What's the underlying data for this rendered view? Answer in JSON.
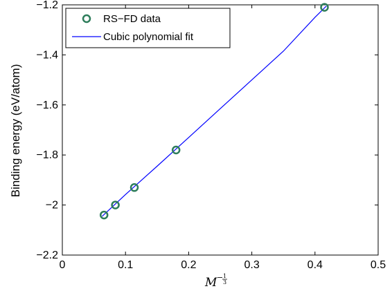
{
  "chart_data": {
    "type": "scatter",
    "title": "",
    "xlabel": {
      "base": "M",
      "exponent_sign": "−",
      "exponent_numerator": "1",
      "exponent_denominator": "3"
    },
    "ylabel": "Binding energy (eV/atom)",
    "xlim": [
      0,
      0.5
    ],
    "ylim": [
      -2.2,
      -1.2
    ],
    "xticks": [
      0,
      0.1,
      0.2,
      0.3,
      0.4,
      0.5
    ],
    "yticks": [
      -2.2,
      -2.0,
      -1.8,
      -1.6,
      -1.4,
      -1.2
    ],
    "xtick_labels": [
      "0",
      "0.1",
      "0.2",
      "0.3",
      "0.4",
      "0.5"
    ],
    "ytick_labels": [
      "−2.2",
      "−2",
      "−1.8",
      "−1.6",
      "−1.4",
      "−1.2"
    ],
    "grid": false,
    "legend": "top-left",
    "series": [
      {
        "name": "RS−FD data",
        "kind": "marker",
        "marker": "circle",
        "color": "#2e7d5b",
        "x": [
          0.066,
          0.084,
          0.114,
          0.18,
          0.415
        ],
        "y": [
          -2.04,
          -2.0,
          -1.93,
          -1.78,
          -1.21
        ]
      },
      {
        "name": "Cubic polynomial fit",
        "kind": "line",
        "color": "#0000ff",
        "x": [
          0.063,
          0.1,
          0.15,
          0.2,
          0.25,
          0.3,
          0.35,
          0.4,
          0.418
        ],
        "y": [
          -2.045,
          -1.958,
          -1.845,
          -1.73,
          -1.615,
          -1.5,
          -1.385,
          -1.25,
          -1.205
        ]
      }
    ]
  }
}
